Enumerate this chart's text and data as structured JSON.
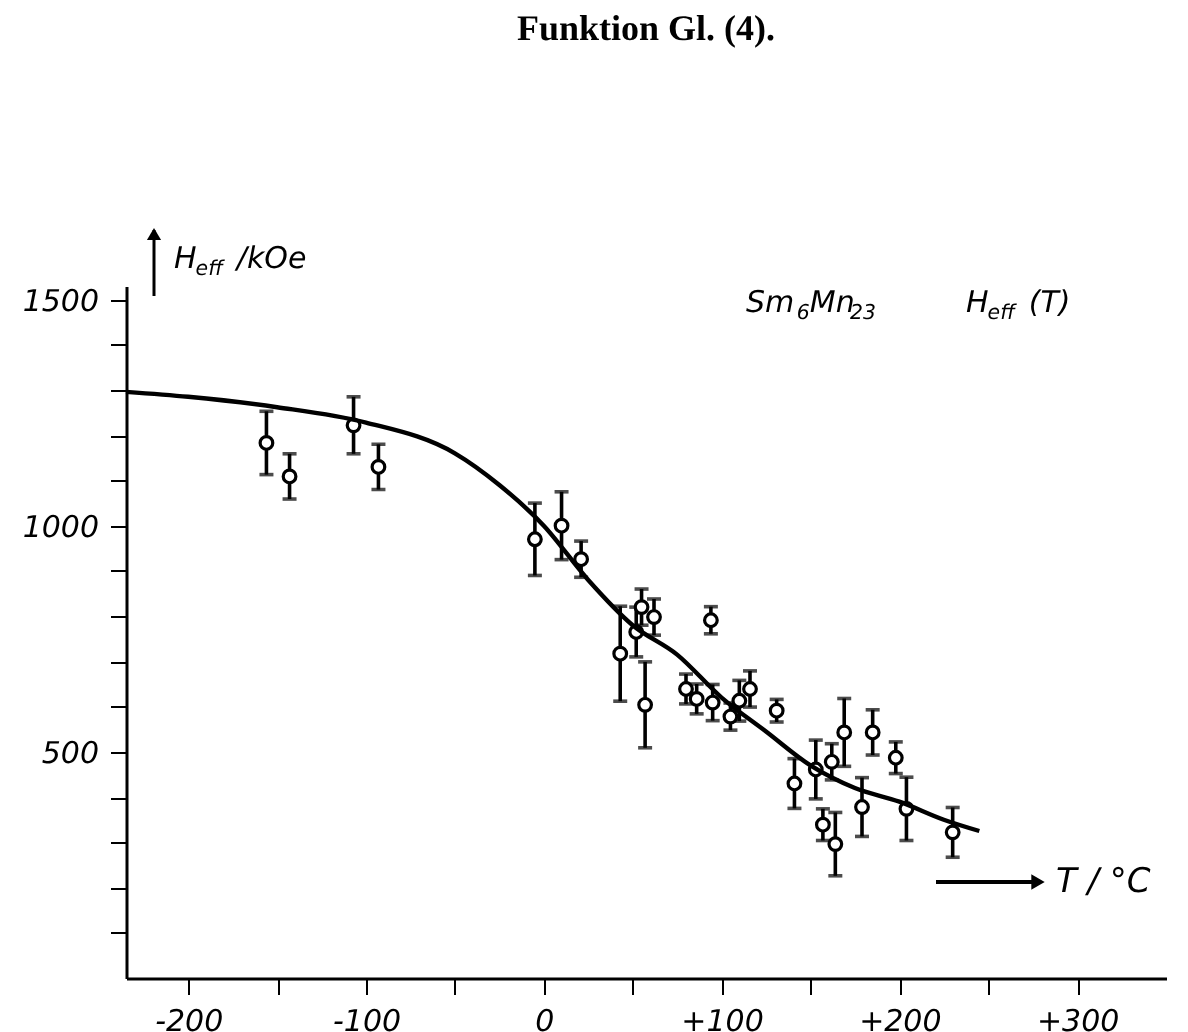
{
  "chart_data": {
    "type": "scatter",
    "title": "Funktion Gl. (4).",
    "xlabel": "T / °C",
    "ylabel": "H$_{eff}$ /kOe",
    "annotations": [
      "Sm$_{6}$Mn$_{23}$",
      "H$_{eff}$ (T)"
    ],
    "xlim": [
      -235,
      350
    ],
    "ylim": [
      0,
      1530
    ],
    "xticks": [
      {
        "value": -200,
        "label": "-200"
      },
      {
        "value": -150,
        "label": null
      },
      {
        "value": -100,
        "label": "-100"
      },
      {
        "value": -50,
        "label": null
      },
      0,
      {
        "value": 50,
        "label": null
      },
      {
        "value": 100,
        "label": "+100"
      },
      {
        "value": 150,
        "label": null
      },
      {
        "value": 200,
        "label": "+200"
      },
      {
        "value": 250,
        "label": null
      },
      {
        "value": 300,
        "label": "+300"
      }
    ],
    "yticks": [
      {
        "value": 100,
        "label": null
      },
      {
        "value": 200,
        "label": null
      },
      {
        "value": 300,
        "label": null
      },
      {
        "value": 400,
        "label": null
      },
      500,
      {
        "value": 600,
        "label": null
      },
      {
        "value": 700,
        "label": null
      },
      {
        "value": 800,
        "label": null
      },
      {
        "value": 900,
        "label": null
      },
      1000,
      {
        "value": 1100,
        "label": null
      },
      {
        "value": 1200,
        "label": null
      },
      {
        "value": 1300,
        "label": null
      },
      {
        "value": 1400,
        "label": null
      },
      1500
    ],
    "grid": false,
    "series": [
      {
        "type": "scatter",
        "color": "#000000",
        "marker": "circle",
        "x": [
          -156,
          -143,
          -107,
          -93,
          -5,
          10,
          21,
          43,
          52,
          55,
          57,
          62,
          80,
          86,
          94,
          95,
          105,
          110,
          116,
          131,
          141,
          153,
          157,
          162,
          164,
          169,
          179,
          185,
          198,
          204,
          230
        ],
        "values": [
          1183,
          1109,
          1222,
          1130,
          970,
          1000,
          926,
          717,
          765,
          820,
          604,
          798,
          639,
          617,
          791,
          609,
          578,
          613,
          639,
          591,
          430,
          461,
          339,
          478,
          296,
          543,
          378,
          543,
          487,
          374,
          322
        ],
        "errors": [
          70,
          50,
          63,
          50,
          80,
          75,
          40,
          105,
          55,
          40,
          95,
          40,
          33,
          33,
          30,
          40,
          30,
          45,
          40,
          25,
          55,
          65,
          35,
          40,
          70,
          75,
          65,
          50,
          35,
          70,
          55
        ]
      },
      {
        "type": "line",
        "color": "#000000",
        "marker": "none",
        "line_style": "solid",
        "x": [
          -235,
          -200,
          -150,
          -100,
          -50,
          -25,
          0,
          25,
          50,
          75,
          100,
          125,
          150,
          175,
          200,
          225,
          245
        ],
        "values": [
          1296,
          1285,
          1262,
          1228,
          1160,
          1090,
          1000,
          880,
          780,
          715,
          620,
          545,
          470,
          420,
          390,
          350,
          325
        ]
      }
    ]
  }
}
